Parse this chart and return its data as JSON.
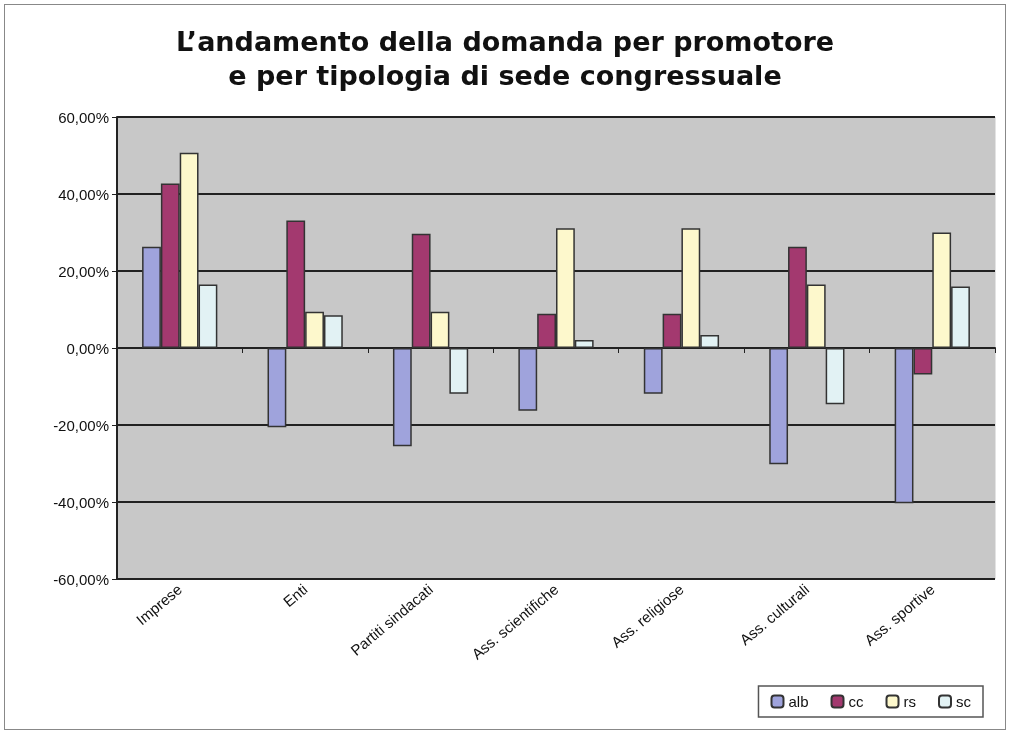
{
  "chart_data": {
    "type": "bar",
    "title": "L’andamento della domanda per promotore\ne per tipologia di sede congressuale",
    "categories": [
      "Imprese",
      "Enti",
      "Partiti sindacati",
      "Ass. scientifiche",
      "Ass. religiose",
      "Ass. culturali",
      "Ass. sportive"
    ],
    "series": [
      {
        "name": "alb",
        "color": "#9fa3dc",
        "values": [
          26.3,
          -20.6,
          -25.5,
          -16.3,
          -11.9,
          -30.2,
          -40.3
        ]
      },
      {
        "name": "cc",
        "color": "#a3396f",
        "values": [
          42.7,
          33.1,
          29.7,
          8.9,
          8.9,
          26.3,
          -6.9
        ]
      },
      {
        "name": "rs",
        "color": "#fdf8cc",
        "values": [
          50.7,
          9.4,
          9.4,
          31.1,
          31.1,
          16.5,
          30
        ]
      },
      {
        "name": "sc",
        "color": "#e2f2f4",
        "values": [
          16.5,
          8.5,
          -11.9,
          2.1,
          3.4,
          -14.6,
          16
        ]
      }
    ],
    "ylim": [
      -60,
      60
    ],
    "yticks": [
      {
        "value": -60,
        "label": "-60,00%"
      },
      {
        "value": -40,
        "label": "-40,00%"
      },
      {
        "value": -20,
        "label": "-20,00%"
      },
      {
        "value": 0,
        "label": "0,00%"
      },
      {
        "value": 20,
        "label": "20,00%"
      },
      {
        "value": 40,
        "label": "40,00%"
      },
      {
        "value": 60,
        "label": "60,00%"
      }
    ],
    "grid": "y",
    "legend": "bottom right"
  }
}
